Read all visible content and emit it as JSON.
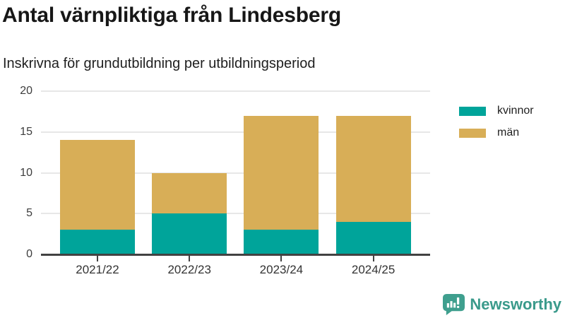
{
  "header": {
    "title": "Antal värnpliktiga från Lindesberg",
    "subtitle": "Inskrivna för grundutbildning per utbildningsperiod"
  },
  "chart_data": {
    "type": "bar",
    "stacked": true,
    "title": "Antal värnpliktiga från Lindesberg",
    "subtitle": "Inskrivna för grundutbildning per utbildningsperiod",
    "categories": [
      "2021/22",
      "2022/23",
      "2023/24",
      "2024/25"
    ],
    "series": [
      {
        "name": "kvinnor",
        "color": "#00a49a",
        "values": [
          3,
          5,
          3,
          4
        ]
      },
      {
        "name": "män",
        "color": "#d8ae57",
        "values": [
          11,
          5,
          14,
          13
        ]
      }
    ],
    "totals": [
      14,
      10,
      17,
      17
    ],
    "xlabel": "",
    "ylabel": "",
    "ylim": [
      0,
      20
    ],
    "yticks": [
      0,
      5,
      10,
      15,
      20
    ],
    "grid": true,
    "legend_position": "right-top"
  },
  "brand": {
    "name": "Newsworthy",
    "color": "#3a9a8b",
    "icon": "bar-chart-speech-bubble-icon"
  }
}
